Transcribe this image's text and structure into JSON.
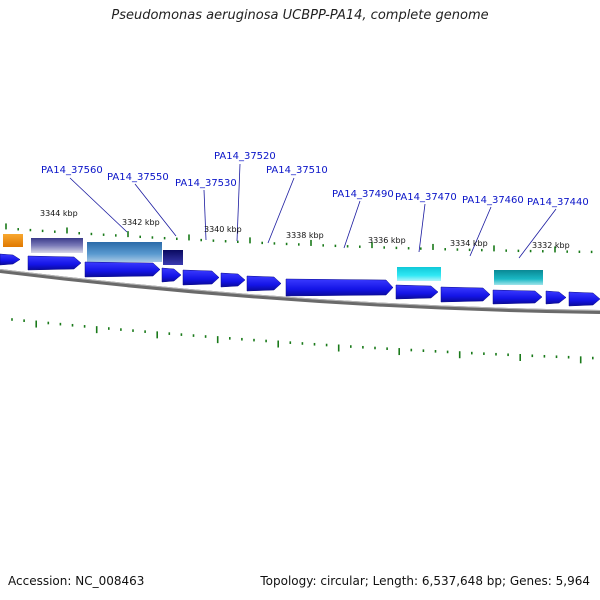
{
  "title": "Pseudomonas aeruginosa UCBPP-PA14, complete genome",
  "footer": {
    "accession": "Accession: NC_008463",
    "summary": "Topology: circular; Length: 6,537,648 bp; Genes: 5,964"
  },
  "position_labels": [
    "3344 kbp",
    "3342 kbp",
    "3340 kbp",
    "3338 kbp",
    "3336 kbp",
    "3334 kbp",
    "3332 kbp"
  ],
  "gene_labels": [
    "PA14_37560",
    "PA14_37550",
    "PA14_37530",
    "PA14_37520",
    "PA14_37510",
    "PA14_37490",
    "PA14_37470",
    "PA14_37460",
    "PA14_37440"
  ],
  "colors": {
    "gene_blue": "#1414e6",
    "label_blue": "#0a14c8",
    "tick_green": "#1a7a1a",
    "backbone": "#808080",
    "feature_orange": "#f5950f",
    "feature_purple": "#4a4a9a",
    "feature_steelblue": "#3a78b8",
    "feature_navy": "#10106e",
    "feature_cyan": "#1ad8e8",
    "feature_teal": "#18a8b4"
  }
}
